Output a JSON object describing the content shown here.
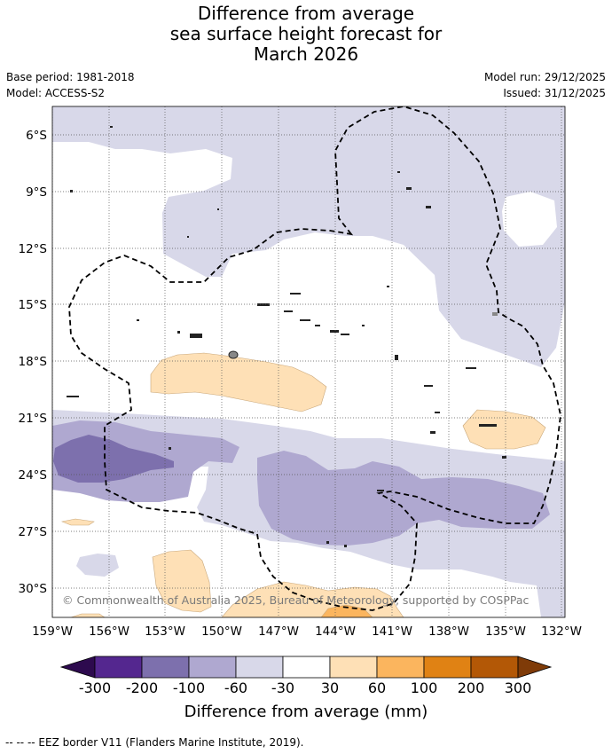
{
  "title": {
    "line1": "Difference from average",
    "line2": "sea surface height forecast for",
    "line3": "March 2026"
  },
  "meta": {
    "base_period": "Base period: 1981-2018",
    "model": "Model: ACCESS-S2",
    "model_run": "Model run: 29/12/2025",
    "issued": "Issued: 31/12/2025"
  },
  "map": {
    "lat_labels": [
      "6°S",
      "9°S",
      "12°S",
      "15°S",
      "18°S",
      "21°S",
      "24°S",
      "27°S",
      "30°S"
    ],
    "lon_labels": [
      "159°W",
      "156°W",
      "153°W",
      "150°W",
      "147°W",
      "144°W",
      "141°W",
      "138°W",
      "135°W",
      "132°W"
    ],
    "copyright": "© Commonwealth of Australia 2025, Bureau of Meteorology, supported by COSPPac"
  },
  "colorbar": {
    "title": "Difference from average (mm)",
    "bins": [
      "-300",
      "-200",
      "-100",
      "-60",
      "-30",
      "30",
      "60",
      "100",
      "200",
      "300"
    ],
    "colors": {
      "under": "#2d0a4e",
      "c1": "#54278f",
      "c2": "#7d70ad",
      "c3": "#afa8d0",
      "c4": "#d8d8e9",
      "c5": "#ffffff",
      "c6": "#fee0b6",
      "c7": "#fbb55e",
      "c8": "#e08214",
      "c9": "#b35806",
      "over": "#7f3b08"
    }
  },
  "footnote": "--  --  -- EEZ border V11 (Flanders Marine Institute, 2019)."
}
